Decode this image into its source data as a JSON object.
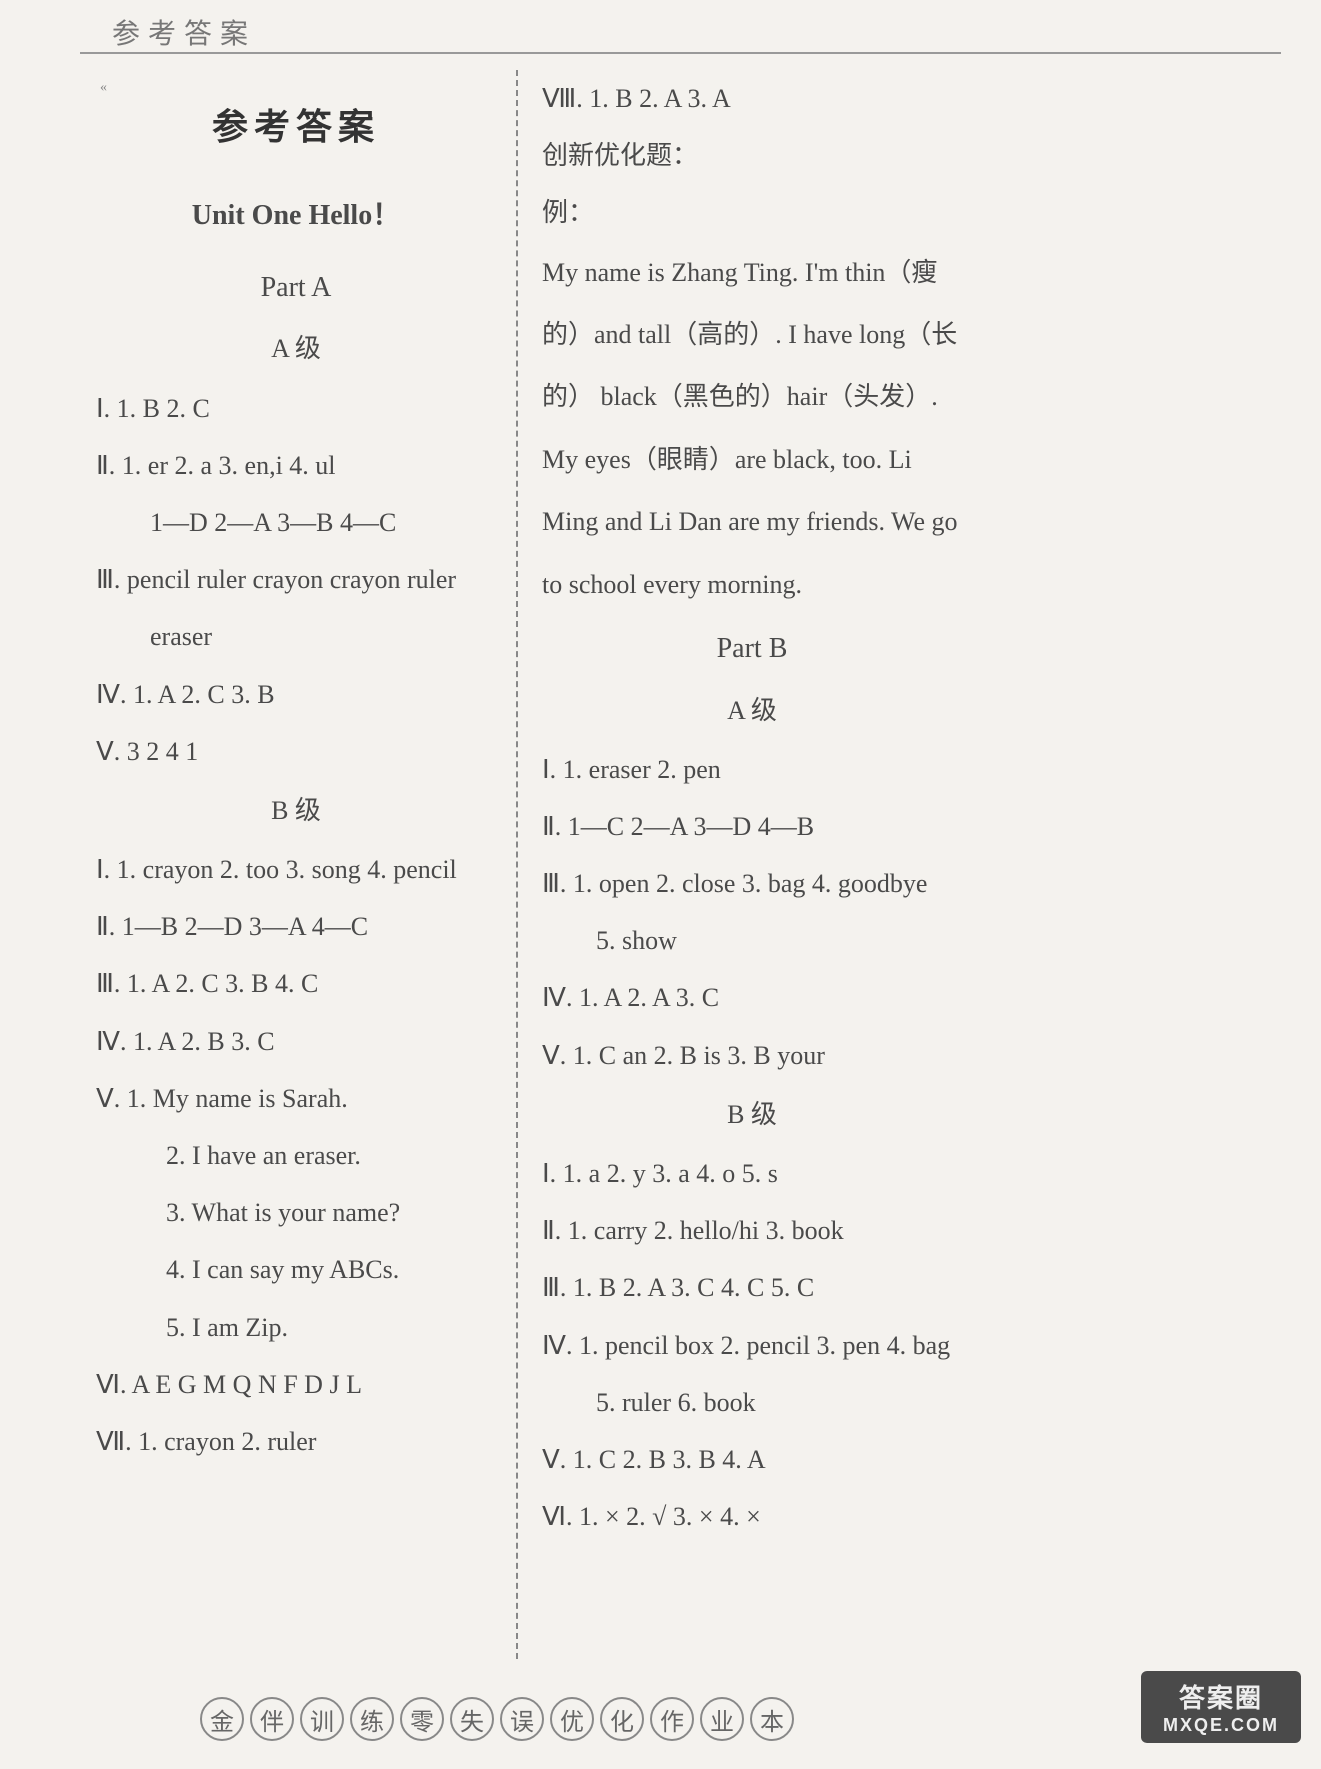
{
  "header": "参考答案",
  "main_title": "参考答案",
  "unit_title": "Unit One   Hello！",
  "part_a": "Part   A",
  "part_b": "Part   B",
  "level_a": "A 级",
  "level_b": "B 级",
  "left": {
    "a": {
      "l1": "Ⅰ. 1. B   2. C",
      "l2": "Ⅱ. 1. er   2. a   3. en,i   4. ul",
      "l2b": "1—D   2—A   3—B   4—C",
      "l3": "Ⅲ. pencil   ruler   crayon   crayon   ruler",
      "l3b": "eraser",
      "l4": "Ⅳ. 1. A   2. C   3. B",
      "l5": "Ⅴ. 3   2   4   1"
    },
    "b": {
      "l1": "Ⅰ. 1. crayon   2. too   3. song   4. pencil",
      "l2": "Ⅱ. 1—B   2—D   3—A   4—C",
      "l3": "Ⅲ. 1. A   2. C   3. B   4. C",
      "l4": "Ⅳ. 1. A   2. B   3. C",
      "l5": "Ⅴ. 1. My name is Sarah.",
      "l5_2": "2. I have an eraser.",
      "l5_3": "3. What is your name?",
      "l5_4": "4. I can say my ABCs.",
      "l5_5": "5. I am Zip.",
      "l6": "Ⅵ. A   E   G   M   Q   N   F   D   J   L",
      "l7": "Ⅶ. 1. crayon   2. ruler"
    }
  },
  "right": {
    "top": {
      "l8": "Ⅷ. 1. B   2. A   3. A",
      "chx": "创新优化题：",
      "ex": "例：",
      "para": "My name is Zhang Ting. I'm thin（瘦的）and tall（高的）. I have long（长的） black（黑色的）hair（头发）. My eyes（眼睛）are black, too. Li Ming and Li Dan are my friends. We go to school every morning."
    },
    "a": {
      "l1": "Ⅰ. 1. eraser   2. pen",
      "l2": "Ⅱ. 1—C   2—A   3—D   4—B",
      "l3": "Ⅲ. 1. open   2. close   3. bag   4. goodbye",
      "l3b": "5. show",
      "l4": "Ⅳ. 1. A   2. A   3. C",
      "l5": "Ⅴ. 1. C   an   2. B   is   3. B   your"
    },
    "b": {
      "l1": "Ⅰ. 1. a   2. y   3. a   4. o   5. s",
      "l2": "Ⅱ. 1. carry   2. hello/hi   3. book",
      "l3": "Ⅲ. 1. B   2. A   3. C   4. C   5. C",
      "l4": "Ⅳ. 1. pencil box   2. pencil   3. pen   4. bag",
      "l4b": "5. ruler   6. book",
      "l5": "Ⅴ. 1. C   2. B   3. B   4. A",
      "l6": "Ⅵ. 1. ×   2. √   3. ×   4. ×"
    }
  },
  "footer_chars": [
    "金",
    "伴",
    "训",
    "练",
    "零",
    "失",
    "误",
    "优",
    "化",
    "作",
    "业",
    "本"
  ],
  "watermark": {
    "line1": "答案圈",
    "line2": "MXQE.COM"
  }
}
